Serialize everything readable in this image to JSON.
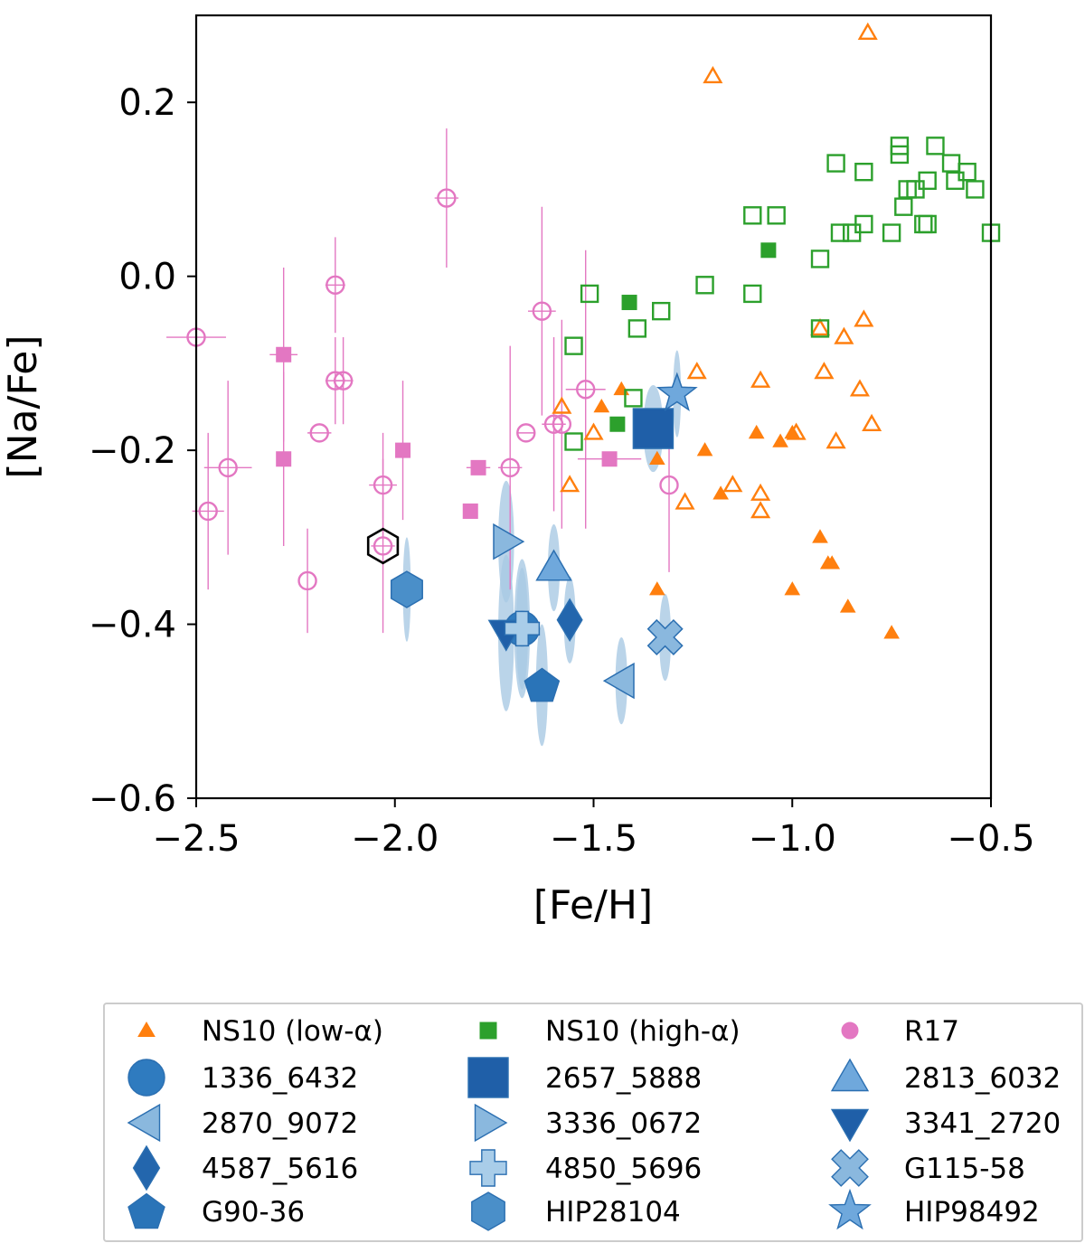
{
  "chart_data": {
    "type": "scatter",
    "xlabel": "[Fe/H]",
    "ylabel": "[Na/Fe]",
    "xlim": [
      -2.5,
      -0.5
    ],
    "ylim": [
      -0.6,
      0.3
    ],
    "x_ticks": [
      -2.5,
      -2.0,
      -1.5,
      -1.0,
      -0.5
    ],
    "y_ticks": [
      -0.6,
      -0.4,
      -0.2,
      0.0,
      0.2
    ],
    "x_tick_labels": [
      "−2.5",
      "−2.0",
      "−1.5",
      "−1.0",
      "−0.5"
    ],
    "y_tick_labels": [
      "−0.6",
      "−0.4",
      "−0.2",
      "0.0",
      "0.2"
    ],
    "grid": false,
    "legend_position": "bottom, below plot",
    "colors": {
      "ns10_low": "#ff7f0e",
      "ns10_high": "#2ca02c",
      "r17": "#e377c2",
      "stars_fill_dark": "#1f5fa8",
      "stars_fill_mid": "#2f7bbf",
      "stars_fill_light": "#8ab8de",
      "error_ellipse": "#a9c9e4"
    },
    "series": [
      {
        "name": "NS10 (low-α)",
        "marker": "triangle-up",
        "color": "#ff7f0e",
        "open": [
          [
            -1.2,
            0.23
          ],
          [
            -0.81,
            0.28
          ],
          [
            -1.58,
            -0.15
          ],
          [
            -1.5,
            -0.18
          ],
          [
            -1.56,
            -0.24
          ],
          [
            -1.27,
            -0.26
          ],
          [
            -1.24,
            -0.11
          ],
          [
            -1.15,
            -0.24
          ],
          [
            -1.08,
            -0.12
          ],
          [
            -1.08,
            -0.25
          ],
          [
            -1.08,
            -0.27
          ],
          [
            -0.99,
            -0.18
          ],
          [
            -0.93,
            -0.06
          ],
          [
            -0.92,
            -0.11
          ],
          [
            -0.89,
            -0.19
          ],
          [
            -0.87,
            -0.07
          ],
          [
            -0.83,
            -0.13
          ],
          [
            -0.82,
            -0.05
          ],
          [
            -0.8,
            -0.17
          ]
        ],
        "filled": [
          [
            -1.48,
            -0.15
          ],
          [
            -1.43,
            -0.13
          ],
          [
            -1.34,
            -0.21
          ],
          [
            -1.34,
            -0.36
          ],
          [
            -1.22,
            -0.2
          ],
          [
            -1.18,
            -0.25
          ],
          [
            -1.09,
            -0.18
          ],
          [
            -1.03,
            -0.19
          ],
          [
            -1.0,
            -0.18
          ],
          [
            -1.0,
            -0.36
          ],
          [
            -0.93,
            -0.3
          ],
          [
            -0.91,
            -0.33
          ],
          [
            -0.9,
            -0.33
          ],
          [
            -0.86,
            -0.38
          ],
          [
            -0.75,
            -0.41
          ]
        ]
      },
      {
        "name": "NS10 (high-α)",
        "marker": "square",
        "color": "#2ca02c",
        "open": [
          [
            -1.51,
            -0.02
          ],
          [
            -1.39,
            -0.06
          ],
          [
            -1.33,
            -0.04
          ],
          [
            -1.22,
            -0.01
          ],
          [
            -1.1,
            -0.02
          ],
          [
            -1.1,
            0.07
          ],
          [
            -1.04,
            0.07
          ],
          [
            -1.55,
            -0.08
          ],
          [
            -1.55,
            -0.19
          ],
          [
            -1.4,
            -0.14
          ],
          [
            -0.93,
            0.02
          ],
          [
            -0.93,
            -0.06
          ],
          [
            -0.89,
            0.13
          ],
          [
            -0.88,
            0.05
          ],
          [
            -0.85,
            0.05
          ],
          [
            -0.82,
            0.12
          ],
          [
            -0.82,
            0.06
          ],
          [
            -0.75,
            0.05
          ],
          [
            -0.73,
            0.14
          ],
          [
            -0.73,
            0.15
          ],
          [
            -0.72,
            0.08
          ],
          [
            -0.71,
            0.1
          ],
          [
            -0.69,
            0.1
          ],
          [
            -0.67,
            0.06
          ],
          [
            -0.66,
            0.11
          ],
          [
            -0.66,
            0.06
          ],
          [
            -0.64,
            0.15
          ],
          [
            -0.6,
            0.13
          ],
          [
            -0.59,
            0.11
          ],
          [
            -0.56,
            0.12
          ],
          [
            -0.54,
            0.1
          ],
          [
            -0.5,
            0.05
          ]
        ],
        "filled": [
          [
            -1.41,
            -0.03
          ],
          [
            -1.44,
            -0.17
          ],
          [
            -1.06,
            0.03
          ]
        ]
      },
      {
        "name": "R17",
        "marker": "circle",
        "color": "#e377c2",
        "open": [
          [
            -2.5,
            -0.07,
            0.075,
            0.08
          ],
          [
            -2.47,
            -0.27,
            0.04,
            0.09
          ],
          [
            -2.42,
            -0.22,
            0.06,
            0.1
          ],
          [
            -2.22,
            -0.35,
            0.0,
            0.06
          ],
          [
            -2.19,
            -0.18,
            0.03,
            0.0
          ],
          [
            -2.15,
            -0.01,
            0.025,
            0.055
          ],
          [
            -2.15,
            -0.12,
            0.025,
            0.05
          ],
          [
            -2.13,
            -0.12,
            0.025,
            0.05
          ],
          [
            -2.03,
            -0.24,
            0.035,
            0.06
          ],
          [
            -2.03,
            -0.31,
            0.03,
            0.1
          ],
          [
            -1.87,
            0.09,
            0.03,
            0.08
          ],
          [
            -1.71,
            -0.22,
            0.03,
            0.14
          ],
          [
            -1.67,
            -0.18,
            0.02,
            0.0
          ],
          [
            -1.63,
            -0.04,
            0.035,
            0.12
          ],
          [
            -1.6,
            -0.17,
            0.03,
            0.1
          ],
          [
            -1.58,
            -0.17,
            0.0,
            0.12
          ],
          [
            -1.52,
            -0.13,
            0.05,
            0.16
          ],
          [
            -1.31,
            -0.24,
            0.0,
            0.1
          ]
        ],
        "filled": [
          [
            -2.28,
            -0.09,
            0.035,
            0.1
          ],
          [
            -2.28,
            -0.21,
            0.0,
            0.1
          ],
          [
            -1.98,
            -0.2,
            0.0,
            0.08
          ],
          [
            -1.79,
            -0.22,
            0.03,
            0.0
          ],
          [
            -1.81,
            -0.27,
            0.0,
            0.0
          ],
          [
            -1.46,
            -0.21,
            0.08,
            0.0
          ]
        ]
      }
    ],
    "highlighted_point": {
      "x": -2.03,
      "y": -0.31,
      "marker": "hexagon-outline",
      "color": "#000000"
    },
    "stars": [
      {
        "name": "1336_6432",
        "marker": "circle",
        "x": -1.68,
        "y": -0.405,
        "fill": "#2f7bbf",
        "err_x": 0.02,
        "err_y": 0.08
      },
      {
        "name": "2657_5888",
        "marker": "square",
        "x": -1.35,
        "y": -0.175,
        "fill": "#1f5fa8",
        "err_x": 0.025,
        "err_y": 0.05
      },
      {
        "name": "2813_6032",
        "marker": "triangle-up",
        "x": -1.6,
        "y": -0.335,
        "fill": "#6fa8dc",
        "err_x": 0.015,
        "err_y": 0.05
      },
      {
        "name": "2870_9072",
        "marker": "triangle-left",
        "x": -1.43,
        "y": -0.465,
        "fill": "#8ab8de",
        "err_x": 0.015,
        "err_y": 0.05
      },
      {
        "name": "3336_0672",
        "marker": "triangle-right",
        "x": -1.72,
        "y": -0.305,
        "fill": "#8ab8de",
        "err_x": 0.02,
        "err_y": 0.07
      },
      {
        "name": "3341_2720",
        "marker": "triangle-down",
        "x": -1.72,
        "y": -0.41,
        "fill": "#1f5fa8",
        "err_x": 0.02,
        "err_y": 0.09
      },
      {
        "name": "4587_5616",
        "marker": "diamond",
        "x": -1.56,
        "y": -0.395,
        "fill": "#2366ad",
        "err_x": 0.015,
        "err_y": 0.05
      },
      {
        "name": "4850_5696",
        "marker": "plus",
        "x": -1.68,
        "y": -0.405,
        "fill": "#a9cde9",
        "err_x": 0.015,
        "err_y": 0.07
      },
      {
        "name": "G115-58",
        "marker": "x",
        "x": -1.32,
        "y": -0.415,
        "fill": "#8ab8de",
        "err_x": 0.015,
        "err_y": 0.05
      },
      {
        "name": "G90-36",
        "marker": "pentagon",
        "x": -1.63,
        "y": -0.47,
        "fill": "#2a74b8",
        "err_x": 0.015,
        "err_y": 0.07
      },
      {
        "name": "HIP28104",
        "marker": "hexagon",
        "x": -1.97,
        "y": -0.36,
        "fill": "#4a8fc9",
        "err_x": 0.01,
        "err_y": 0.06
      },
      {
        "name": "HIP98492",
        "marker": "star",
        "x": -1.29,
        "y": -0.135,
        "fill": "#6fa8dc",
        "err_x": 0.01,
        "err_y": 0.05
      }
    ],
    "legend": [
      {
        "label": "NS10 (low-α)",
        "marker": "triangle-up-small",
        "color": "#ff7f0e"
      },
      {
        "label": "NS10 (high-α)",
        "marker": "square-small",
        "color": "#2ca02c"
      },
      {
        "label": "R17",
        "marker": "circle-small",
        "color": "#e377c2"
      },
      {
        "label": "1336_6432",
        "marker": "circle",
        "color": "#2f7bbf"
      },
      {
        "label": "2657_5888",
        "marker": "square",
        "color": "#1f5fa8"
      },
      {
        "label": "2813_6032",
        "marker": "triangle-up",
        "color": "#6fa8dc"
      },
      {
        "label": "2870_9072",
        "marker": "triangle-left",
        "color": "#8ab8de"
      },
      {
        "label": "3336_0672",
        "marker": "triangle-right",
        "color": "#8ab8de"
      },
      {
        "label": "3341_2720",
        "marker": "triangle-down",
        "color": "#1f5fa8"
      },
      {
        "label": "4587_5616",
        "marker": "diamond",
        "color": "#2366ad"
      },
      {
        "label": "4850_5696",
        "marker": "plus",
        "color": "#a9cde9"
      },
      {
        "label": "G115-58",
        "marker": "x",
        "color": "#8ab8de"
      },
      {
        "label": "G90-36",
        "marker": "pentagon",
        "color": "#2a74b8"
      },
      {
        "label": "HIP28104",
        "marker": "hexagon",
        "color": "#4a8fc9"
      },
      {
        "label": "HIP98492",
        "marker": "star",
        "color": "#6fa8dc"
      }
    ]
  }
}
